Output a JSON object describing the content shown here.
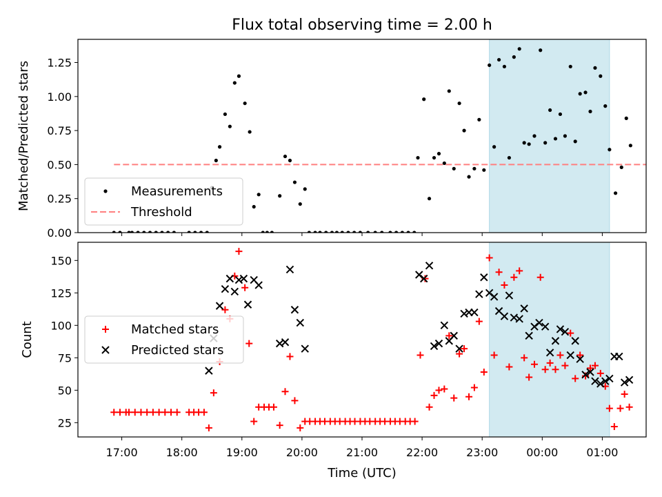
{
  "title": "Flux total observing time = 2.00 h",
  "colors": {
    "measurement": "#000000",
    "threshold": "#ff7f7f",
    "matched": "#ff0000",
    "predicted": "#000000",
    "shade": "#add8e6"
  },
  "chart_data": [
    {
      "type": "scatter",
      "title": "Flux total observing time = 2.00 h",
      "ylabel": "Matched/Predicted stars",
      "xlabel": "",
      "x_unit": "hours since 17:00 UTC on the axis day (values past 24 are after midnight)",
      "xlim": [
        16.27,
        25.73
      ],
      "ylim": [
        0.0,
        1.42
      ],
      "yticks": [
        "0.00",
        "0.25",
        "0.50",
        "0.75",
        "1.00",
        "1.25"
      ],
      "ytick_values": [
        0,
        0.25,
        0.5,
        0.75,
        1.0,
        1.25
      ],
      "grid": false,
      "legend_position": "lower left",
      "legend": [
        "Measurements",
        "Threshold"
      ],
      "shaded_x_range": [
        23.12,
        25.12
      ],
      "threshold": {
        "name": "Threshold",
        "x": [
          16.87,
          26.47
        ],
        "y": 0.5
      },
      "series": [
        {
          "name": "Measurements",
          "marker": "dot",
          "points": [
            [
              16.87,
              0
            ],
            [
              16.97,
              0
            ],
            [
              17.12,
              0
            ],
            [
              17.17,
              0
            ],
            [
              17.27,
              0
            ],
            [
              17.37,
              0
            ],
            [
              17.47,
              0
            ],
            [
              17.57,
              0
            ],
            [
              17.67,
              0
            ],
            [
              17.77,
              0
            ],
            [
              17.87,
              0
            ],
            [
              18.12,
              0
            ],
            [
              18.22,
              0
            ],
            [
              18.32,
              0
            ],
            [
              18.42,
              0
            ],
            [
              18.5,
              0.33
            ],
            [
              18.57,
              0.53
            ],
            [
              18.63,
              0.63
            ],
            [
              18.72,
              0.87
            ],
            [
              18.8,
              0.78
            ],
            [
              18.88,
              1.1
            ],
            [
              18.95,
              1.15
            ],
            [
              19.05,
              0.95
            ],
            [
              19.13,
              0.74
            ],
            [
              19.2,
              0.19
            ],
            [
              19.28,
              0.28
            ],
            [
              19.35,
              0
            ],
            [
              19.42,
              0
            ],
            [
              19.5,
              0
            ],
            [
              19.63,
              0.27
            ],
            [
              19.72,
              0.56
            ],
            [
              19.8,
              0.53
            ],
            [
              19.88,
              0.37
            ],
            [
              19.97,
              0.21
            ],
            [
              20.05,
              0.32
            ],
            [
              20.12,
              0
            ],
            [
              20.22,
              0
            ],
            [
              20.3,
              0
            ],
            [
              20.4,
              0
            ],
            [
              20.5,
              0
            ],
            [
              20.58,
              0
            ],
            [
              20.67,
              0
            ],
            [
              20.77,
              0
            ],
            [
              20.87,
              0
            ],
            [
              20.97,
              0
            ],
            [
              21.1,
              0
            ],
            [
              21.22,
              0
            ],
            [
              21.33,
              0
            ],
            [
              21.47,
              0
            ],
            [
              21.57,
              0
            ],
            [
              21.67,
              0
            ],
            [
              21.77,
              0
            ],
            [
              21.87,
              0
            ],
            [
              21.93,
              0.55
            ],
            [
              22.03,
              0.98
            ],
            [
              22.12,
              0.25
            ],
            [
              22.2,
              0.55
            ],
            [
              22.28,
              0.58
            ],
            [
              22.37,
              0.51
            ],
            [
              22.45,
              1.04
            ],
            [
              22.53,
              0.47
            ],
            [
              22.62,
              0.95
            ],
            [
              22.7,
              0.75
            ],
            [
              22.78,
              0.41
            ],
            [
              22.87,
              0.47
            ],
            [
              22.95,
              0.83
            ],
            [
              23.03,
              0.46
            ],
            [
              23.12,
              1.23
            ],
            [
              23.2,
              0.63
            ],
            [
              23.28,
              1.27
            ],
            [
              23.37,
              1.22
            ],
            [
              23.45,
              0.55
            ],
            [
              23.53,
              1.29
            ],
            [
              23.62,
              1.35
            ],
            [
              23.7,
              0.66
            ],
            [
              23.78,
              0.65
            ],
            [
              23.87,
              0.71
            ],
            [
              23.97,
              1.34
            ],
            [
              24.05,
              0.66
            ],
            [
              24.13,
              0.9
            ],
            [
              24.22,
              0.69
            ],
            [
              24.3,
              0.87
            ],
            [
              24.38,
              0.71
            ],
            [
              24.47,
              1.22
            ],
            [
              24.55,
              0.67
            ],
            [
              24.63,
              1.02
            ],
            [
              24.72,
              1.03
            ],
            [
              24.8,
              0.89
            ],
            [
              24.88,
              1.21
            ],
            [
              24.97,
              1.15
            ],
            [
              25.05,
              0.93
            ],
            [
              25.12,
              0.61
            ],
            [
              25.22,
              0.29
            ],
            [
              25.32,
              0.48
            ],
            [
              25.4,
              0.84
            ],
            [
              25.47,
              0.64
            ]
          ]
        }
      ]
    },
    {
      "type": "scatter",
      "ylabel": "Count",
      "xlabel": "Time (UTC)",
      "x_unit": "hours since 17:00 UTC on the axis day (values past 24 are after midnight)",
      "xlim": [
        16.27,
        25.73
      ],
      "ylim": [
        14,
        164
      ],
      "yticks": [
        "25",
        "50",
        "75",
        "100",
        "125",
        "150"
      ],
      "ytick_values": [
        25,
        50,
        75,
        100,
        125,
        150
      ],
      "xticks": [
        "17:00",
        "18:00",
        "19:00",
        "20:00",
        "21:00",
        "22:00",
        "23:00",
        "00:00",
        "01:00"
      ],
      "xtick_values": [
        17,
        18,
        19,
        20,
        21,
        22,
        23,
        24,
        25
      ],
      "grid": false,
      "legend_position": "center left",
      "legend": [
        "Matched stars",
        "Predicted stars"
      ],
      "shaded_x_range": [
        23.12,
        25.12
      ],
      "series": [
        {
          "name": "Matched stars",
          "marker": "plus",
          "points": [
            [
              16.87,
              33
            ],
            [
              16.97,
              33
            ],
            [
              17.07,
              33
            ],
            [
              17.12,
              33
            ],
            [
              17.22,
              33
            ],
            [
              17.32,
              33
            ],
            [
              17.42,
              33
            ],
            [
              17.52,
              33
            ],
            [
              17.62,
              33
            ],
            [
              17.72,
              33
            ],
            [
              17.82,
              33
            ],
            [
              17.92,
              33
            ],
            [
              18.12,
              33
            ],
            [
              18.2,
              33
            ],
            [
              18.28,
              33
            ],
            [
              18.37,
              33
            ],
            [
              18.45,
              21
            ],
            [
              18.53,
              48
            ],
            [
              18.63,
              72
            ],
            [
              18.72,
              112
            ],
            [
              18.8,
              105
            ],
            [
              18.88,
              138
            ],
            [
              18.95,
              157
            ],
            [
              19.05,
              129
            ],
            [
              19.12,
              86
            ],
            [
              19.2,
              26
            ],
            [
              19.28,
              37
            ],
            [
              19.37,
              37
            ],
            [
              19.45,
              37
            ],
            [
              19.53,
              37
            ],
            [
              19.63,
              23
            ],
            [
              19.72,
              49
            ],
            [
              19.8,
              76
            ],
            [
              19.88,
              42
            ],
            [
              19.97,
              21
            ],
            [
              20.05,
              26
            ],
            [
              20.13,
              26
            ],
            [
              20.22,
              26
            ],
            [
              20.3,
              26
            ],
            [
              20.38,
              26
            ],
            [
              20.47,
              26
            ],
            [
              20.55,
              26
            ],
            [
              20.63,
              26
            ],
            [
              20.72,
              26
            ],
            [
              20.8,
              26
            ],
            [
              20.88,
              26
            ],
            [
              20.97,
              26
            ],
            [
              21.05,
              26
            ],
            [
              21.13,
              26
            ],
            [
              21.22,
              26
            ],
            [
              21.3,
              26
            ],
            [
              21.38,
              26
            ],
            [
              21.47,
              26
            ],
            [
              21.55,
              26
            ],
            [
              21.63,
              26
            ],
            [
              21.72,
              26
            ],
            [
              21.8,
              26
            ],
            [
              21.88,
              26
            ],
            [
              21.97,
              77
            ],
            [
              22.05,
              136
            ],
            [
              22.12,
              37
            ],
            [
              22.2,
              46
            ],
            [
              22.28,
              50
            ],
            [
              22.37,
              51
            ],
            [
              22.45,
              92
            ],
            [
              22.53,
              44
            ],
            [
              22.62,
              78
            ],
            [
              22.7,
              82
            ],
            [
              22.78,
              45
            ],
            [
              22.87,
              52
            ],
            [
              22.95,
              103
            ],
            [
              23.03,
              64
            ],
            [
              23.12,
              152
            ],
            [
              23.2,
              77
            ],
            [
              23.28,
              141
            ],
            [
              23.37,
              131
            ],
            [
              23.45,
              68
            ],
            [
              23.53,
              137
            ],
            [
              23.62,
              142
            ],
            [
              23.7,
              75
            ],
            [
              23.78,
              60
            ],
            [
              23.87,
              70
            ],
            [
              23.97,
              137
            ],
            [
              24.05,
              66
            ],
            [
              24.13,
              71
            ],
            [
              24.22,
              66
            ],
            [
              24.3,
              77
            ],
            [
              24.38,
              69
            ],
            [
              24.47,
              94
            ],
            [
              24.55,
              59
            ],
            [
              24.63,
              77
            ],
            [
              24.72,
              61
            ],
            [
              24.8,
              67
            ],
            [
              24.88,
              69
            ],
            [
              24.97,
              63
            ],
            [
              25.05,
              53
            ],
            [
              25.12,
              36
            ],
            [
              25.2,
              22
            ],
            [
              25.3,
              36
            ],
            [
              25.37,
              47
            ],
            [
              25.45,
              37
            ]
          ]
        },
        {
          "name": "Predicted stars",
          "marker": "x",
          "points": [
            [
              18.45,
              65
            ],
            [
              18.53,
              90
            ],
            [
              18.63,
              115
            ],
            [
              18.72,
              128
            ],
            [
              18.8,
              136
            ],
            [
              18.88,
              126
            ],
            [
              18.95,
              135
            ],
            [
              19.03,
              136
            ],
            [
              19.1,
              116
            ],
            [
              19.2,
              135
            ],
            [
              19.28,
              131
            ],
            [
              19.63,
              86
            ],
            [
              19.72,
              87
            ],
            [
              19.8,
              143
            ],
            [
              19.88,
              112
            ],
            [
              19.97,
              102
            ],
            [
              20.05,
              82
            ],
            [
              21.95,
              139
            ],
            [
              22.03,
              136
            ],
            [
              22.12,
              146
            ],
            [
              22.2,
              84
            ],
            [
              22.28,
              86
            ],
            [
              22.37,
              100
            ],
            [
              22.45,
              88
            ],
            [
              22.53,
              92
            ],
            [
              22.62,
              82
            ],
            [
              22.7,
              109
            ],
            [
              22.78,
              110
            ],
            [
              22.87,
              110
            ],
            [
              22.95,
              124
            ],
            [
              23.03,
              137
            ],
            [
              23.12,
              125
            ],
            [
              23.2,
              122
            ],
            [
              23.28,
              111
            ],
            [
              23.37,
              107
            ],
            [
              23.45,
              123
            ],
            [
              23.53,
              106
            ],
            [
              23.62,
              105
            ],
            [
              23.7,
              113
            ],
            [
              23.78,
              92
            ],
            [
              23.87,
              99
            ],
            [
              23.95,
              102
            ],
            [
              24.05,
              99
            ],
            [
              24.13,
              79
            ],
            [
              24.22,
              88
            ],
            [
              24.3,
              97
            ],
            [
              24.38,
              95
            ],
            [
              24.47,
              77
            ],
            [
              24.55,
              88
            ],
            [
              24.63,
              74
            ],
            [
              24.72,
              62
            ],
            [
              24.8,
              64
            ],
            [
              24.88,
              57
            ],
            [
              24.97,
              55
            ],
            [
              25.05,
              57
            ],
            [
              25.12,
              59
            ],
            [
              25.2,
              76
            ],
            [
              25.28,
              76
            ],
            [
              25.37,
              56
            ],
            [
              25.45,
              58
            ]
          ]
        }
      ]
    }
  ]
}
